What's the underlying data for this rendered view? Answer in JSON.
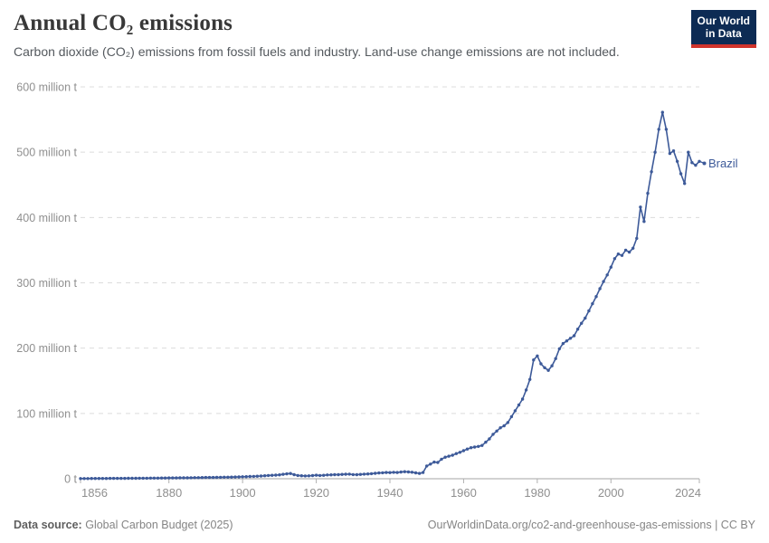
{
  "header": {
    "title": "Annual CO₂ emissions",
    "subtitle": "Carbon dioxide (CO₂) emissions from fossil fuels and industry. Land-use change emissions are not included."
  },
  "logo": {
    "line1": "Our World",
    "line2": "in Data"
  },
  "footer": {
    "source_label": "Data source:",
    "source_value": "Global Carbon Budget (2025)",
    "credit": "OurWorldinData.org/co2-and-greenhouse-gas-emissions | CC BY"
  },
  "colors": {
    "line": "#3d5a99",
    "grid": "#dcdcdc",
    "zero_line": "#a5a5a5",
    "tick": "#b0b0b0",
    "tick_label": "#8f8f8f",
    "logo_bg": "#0d2b54",
    "logo_red": "#d0342c"
  },
  "chart_data": {
    "type": "line",
    "title": "Annual CO₂ emissions",
    "entity": "Brazil",
    "unit": "million t CO₂",
    "xlabel": "",
    "ylabel": "",
    "xlim": [
      1856,
      2024
    ],
    "ylim": [
      0,
      600
    ],
    "grid": "horizontal-dashed",
    "legend_position": "end-of-line-label",
    "end_label": "Brazil",
    "x_ticks": [
      1856,
      1880,
      1900,
      1920,
      1940,
      1960,
      1980,
      2000,
      2024
    ],
    "y_ticks": [
      [
        0,
        "0 t"
      ],
      [
        100,
        "100 million t"
      ],
      [
        200,
        "200 million t"
      ],
      [
        300,
        "300 million t"
      ],
      [
        400,
        "400 million t"
      ],
      [
        500,
        "500 million t"
      ],
      [
        600,
        "600 million t"
      ]
    ],
    "series": [
      {
        "name": "Brazil",
        "color": "#3d5a99",
        "points": [
          [
            1856,
            0.3
          ],
          [
            1857,
            0.3
          ],
          [
            1858,
            0.3
          ],
          [
            1859,
            0.35
          ],
          [
            1860,
            0.4
          ],
          [
            1861,
            0.4
          ],
          [
            1862,
            0.45
          ],
          [
            1863,
            0.45
          ],
          [
            1864,
            0.5
          ],
          [
            1865,
            0.5
          ],
          [
            1866,
            0.55
          ],
          [
            1867,
            0.6
          ],
          [
            1868,
            0.6
          ],
          [
            1869,
            0.65
          ],
          [
            1870,
            0.7
          ],
          [
            1871,
            0.75
          ],
          [
            1872,
            0.8
          ],
          [
            1873,
            0.85
          ],
          [
            1874,
            0.9
          ],
          [
            1875,
            0.95
          ],
          [
            1876,
            1.0
          ],
          [
            1877,
            1.0
          ],
          [
            1878,
            1.1
          ],
          [
            1879,
            1.15
          ],
          [
            1880,
            1.2
          ],
          [
            1881,
            1.25
          ],
          [
            1882,
            1.3
          ],
          [
            1883,
            1.35
          ],
          [
            1884,
            1.4
          ],
          [
            1885,
            1.45
          ],
          [
            1886,
            1.5
          ],
          [
            1887,
            1.6
          ],
          [
            1888,
            1.7
          ],
          [
            1889,
            1.8
          ],
          [
            1890,
            1.9
          ],
          [
            1891,
            2.0
          ],
          [
            1892,
            2.0
          ],
          [
            1893,
            2.1
          ],
          [
            1894,
            2.2
          ],
          [
            1895,
            2.3
          ],
          [
            1896,
            2.4
          ],
          [
            1897,
            2.5
          ],
          [
            1898,
            2.6
          ],
          [
            1899,
            2.8
          ],
          [
            1900,
            3.0
          ],
          [
            1901,
            3.2
          ],
          [
            1902,
            3.4
          ],
          [
            1903,
            3.6
          ],
          [
            1904,
            3.9
          ],
          [
            1905,
            4.2
          ],
          [
            1906,
            4.6
          ],
          [
            1907,
            5.0
          ],
          [
            1908,
            5.3
          ],
          [
            1909,
            5.6
          ],
          [
            1910,
            6.0
          ],
          [
            1911,
            6.8
          ],
          [
            1912,
            7.5
          ],
          [
            1913,
            8.0
          ],
          [
            1914,
            6.2
          ],
          [
            1915,
            5.0
          ],
          [
            1916,
            4.6
          ],
          [
            1917,
            4.3
          ],
          [
            1918,
            4.4
          ],
          [
            1919,
            4.8
          ],
          [
            1920,
            5.4
          ],
          [
            1921,
            5.0
          ],
          [
            1922,
            5.3
          ],
          [
            1923,
            5.8
          ],
          [
            1924,
            6.0
          ],
          [
            1925,
            6.3
          ],
          [
            1926,
            6.2
          ],
          [
            1927,
            6.6
          ],
          [
            1928,
            6.9
          ],
          [
            1929,
            7.1
          ],
          [
            1930,
            6.4
          ],
          [
            1931,
            6.2
          ],
          [
            1932,
            6.6
          ],
          [
            1933,
            7.0
          ],
          [
            1934,
            7.4
          ],
          [
            1935,
            7.8
          ],
          [
            1936,
            8.3
          ],
          [
            1937,
            8.8
          ],
          [
            1938,
            9.2
          ],
          [
            1939,
            9.6
          ],
          [
            1940,
            9.4
          ],
          [
            1941,
            9.8
          ],
          [
            1942,
            9.5
          ],
          [
            1943,
            10.2
          ],
          [
            1944,
            10.8
          ],
          [
            1945,
            10.4
          ],
          [
            1946,
            10.0
          ],
          [
            1947,
            9.0
          ],
          [
            1948,
            8.2
          ],
          [
            1949,
            9.5
          ],
          [
            1950,
            19.5
          ],
          [
            1951,
            22.5
          ],
          [
            1952,
            25.5
          ],
          [
            1953,
            25.0
          ],
          [
            1954,
            30.0
          ],
          [
            1955,
            33.0
          ],
          [
            1956,
            34.5
          ],
          [
            1957,
            36.0
          ],
          [
            1958,
            38.5
          ],
          [
            1959,
            40.5
          ],
          [
            1960,
            43.0
          ],
          [
            1961,
            45.5
          ],
          [
            1962,
            47.5
          ],
          [
            1963,
            48.5
          ],
          [
            1964,
            49.5
          ],
          [
            1965,
            51.0
          ],
          [
            1966,
            56.0
          ],
          [
            1967,
            61.0
          ],
          [
            1968,
            68.0
          ],
          [
            1969,
            73.0
          ],
          [
            1970,
            78.0
          ],
          [
            1971,
            81.0
          ],
          [
            1972,
            86.0
          ],
          [
            1973,
            95.0
          ],
          [
            1974,
            104.0
          ],
          [
            1975,
            113.0
          ],
          [
            1976,
            122.0
          ],
          [
            1977,
            136.0
          ],
          [
            1978,
            152.0
          ],
          [
            1979,
            182.0
          ],
          [
            1980,
            188.0
          ],
          [
            1981,
            176.0
          ],
          [
            1982,
            170.0
          ],
          [
            1983,
            166.0
          ],
          [
            1984,
            173.0
          ],
          [
            1985,
            184.0
          ],
          [
            1986,
            199.0
          ],
          [
            1987,
            207.0
          ],
          [
            1988,
            211.0
          ],
          [
            1989,
            215.0
          ],
          [
            1990,
            219.0
          ],
          [
            1991,
            229.0
          ],
          [
            1992,
            238.0
          ],
          [
            1993,
            246.0
          ],
          [
            1994,
            257.0
          ],
          [
            1995,
            268.0
          ],
          [
            1996,
            279.0
          ],
          [
            1997,
            291.0
          ],
          [
            1998,
            302.0
          ],
          [
            1999,
            312.0
          ],
          [
            2000,
            324.0
          ],
          [
            2001,
            337.0
          ],
          [
            2002,
            344.0
          ],
          [
            2003,
            342.0
          ],
          [
            2004,
            350.0
          ],
          [
            2005,
            347.0
          ],
          [
            2006,
            353.0
          ],
          [
            2007,
            368.0
          ],
          [
            2008,
            416.0
          ],
          [
            2009,
            394.0
          ],
          [
            2010,
            437.0
          ],
          [
            2011,
            470.0
          ],
          [
            2012,
            500.0
          ],
          [
            2013,
            535.0
          ],
          [
            2014,
            561.0
          ],
          [
            2015,
            535.0
          ],
          [
            2016,
            498.0
          ],
          [
            2017,
            502.0
          ],
          [
            2018,
            486.0
          ],
          [
            2019,
            467.0
          ],
          [
            2020,
            452.0
          ],
          [
            2021,
            500.0
          ],
          [
            2022,
            484.0
          ],
          [
            2023,
            480.0
          ],
          [
            2024,
            486.0
          ]
        ]
      }
    ]
  }
}
